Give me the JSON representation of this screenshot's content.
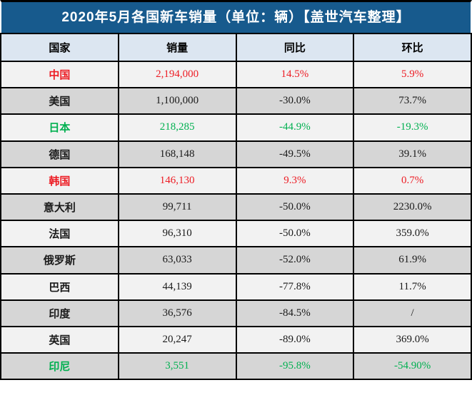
{
  "title": "2020年5月各国新车销量（单位：辆）【盖世汽车整理】",
  "colors": {
    "title_bar_bg": "#175A8D",
    "title_text": "#FFFFFF",
    "header_bg": "#DCE6F1",
    "row_light_bg": "#F2F2F2",
    "row_dark_bg": "#D6D6D6",
    "grid_border": "#000000",
    "highlight_red": "#ED1C24",
    "highlight_green": "#00B050",
    "default_text": "#1A1A1A"
  },
  "chart_data": {
    "type": "table",
    "title": "2020年5月各国新车销量（单位：辆）【盖世汽车整理】",
    "columns": [
      "国家",
      "销量",
      "同比",
      "环比"
    ],
    "rows": [
      {
        "country": "中国",
        "sales": "2,194,000",
        "yoy": "14.5%",
        "mom": "5.9%",
        "color": "red"
      },
      {
        "country": "美国",
        "sales": "1,100,000",
        "yoy": "-30.0%",
        "mom": "73.7%",
        "color": "black"
      },
      {
        "country": "日本",
        "sales": "218,285",
        "yoy": "-44.9%",
        "mom": "-19.3%",
        "color": "green"
      },
      {
        "country": "德国",
        "sales": "168,148",
        "yoy": "-49.5%",
        "mom": "39.1%",
        "color": "black"
      },
      {
        "country": "韩国",
        "sales": "146,130",
        "yoy": "9.3%",
        "mom": "0.7%",
        "color": "red"
      },
      {
        "country": "意大利",
        "sales": "99,711",
        "yoy": "-50.0%",
        "mom": "2230.0%",
        "color": "black"
      },
      {
        "country": "法国",
        "sales": "96,310",
        "yoy": "-50.0%",
        "mom": "359.0%",
        "color": "black"
      },
      {
        "country": "俄罗斯",
        "sales": "63,033",
        "yoy": "-52.0%",
        "mom": "61.9%",
        "color": "black"
      },
      {
        "country": "巴西",
        "sales": "44,139",
        "yoy": "-77.8%",
        "mom": "11.7%",
        "color": "black"
      },
      {
        "country": "印度",
        "sales": "36,576",
        "yoy": "-84.5%",
        "mom": "/",
        "color": "black"
      },
      {
        "country": "英国",
        "sales": "20,247",
        "yoy": "-89.0%",
        "mom": "369.0%",
        "color": "black"
      },
      {
        "country": "印尼",
        "sales": "3,551",
        "yoy": "-95.8%",
        "mom": "-54.90%",
        "color": "green"
      }
    ]
  }
}
